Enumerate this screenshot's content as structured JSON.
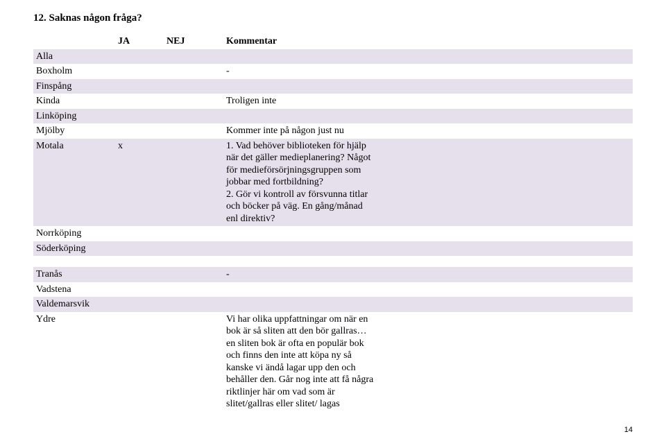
{
  "heading": "12. Saknas någon fråga?",
  "columns": {
    "c0": "",
    "c1": "JA",
    "c2": "NEJ",
    "c3": "Kommentar"
  },
  "rows1": [
    {
      "name": "Alla",
      "ja": "",
      "nej": "",
      "comment": "",
      "alt": true
    },
    {
      "name": "Boxholm",
      "ja": "",
      "nej": "",
      "comment": "-",
      "alt": false
    },
    {
      "name": "Finspång",
      "ja": "",
      "nej": "",
      "comment": "",
      "alt": true
    },
    {
      "name": "Kinda",
      "ja": "",
      "nej": "",
      "comment": "Troligen inte",
      "alt": false
    },
    {
      "name": "Linköping",
      "ja": "",
      "nej": "",
      "comment": "",
      "alt": true
    },
    {
      "name": "Mjölby",
      "ja": "",
      "nej": "",
      "comment": "Kommer inte på någon just nu",
      "alt": false
    },
    {
      "name": "Motala",
      "ja": "x",
      "nej": "",
      "comment": "1. Vad behöver biblioteken för hjälp när det gäller medieplanering? Något för medieförsörjningsgruppen som jobbar med fortbildning?\n2. Gör vi kontroll av försvunna titlar och böcker på väg. En gång/månad enl direktiv?",
      "alt": true
    },
    {
      "name": "Norrköping",
      "ja": "",
      "nej": "",
      "comment": "",
      "alt": false
    },
    {
      "name": "Söderköping",
      "ja": "",
      "nej": "",
      "comment": "",
      "alt": true
    }
  ],
  "rows2": [
    {
      "name": "Tranås",
      "ja": "",
      "nej": "",
      "comment": "-",
      "alt": true
    },
    {
      "name": "Vadstena",
      "ja": "",
      "nej": "",
      "comment": "",
      "alt": false
    },
    {
      "name": "Valdemarsvik",
      "ja": "",
      "nej": "",
      "comment": "",
      "alt": true
    },
    {
      "name": "Ydre",
      "ja": "",
      "nej": "",
      "comment": "Vi har olika uppfattningar om när en bok är så sliten att den bör gallras… en sliten bok är ofta en populär bok och finns den inte att köpa ny så kanske vi ändå lagar upp den och behåller den. Går nog inte att få några riktlinjer här om vad som är slitet/gallras eller slitet/  lagas",
      "alt": false
    }
  ],
  "colors": {
    "alt_bg": "#e6e0ec",
    "text": "#000000",
    "page_bg": "#ffffff"
  },
  "page_number": "14"
}
